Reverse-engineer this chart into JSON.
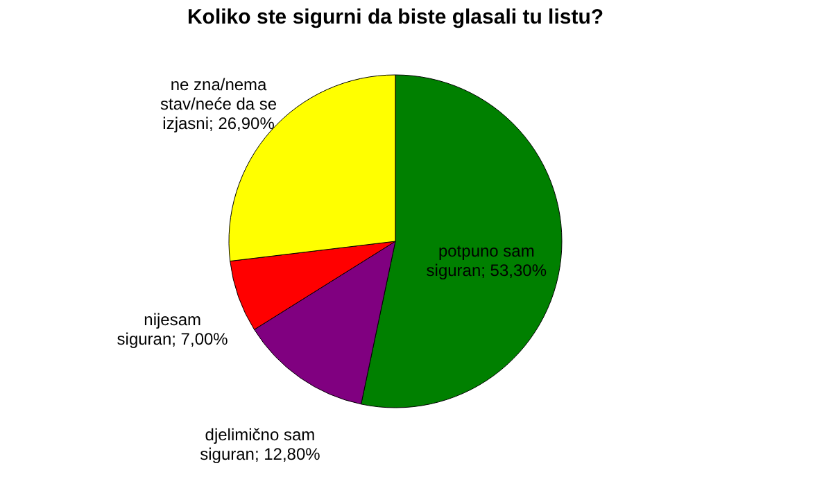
{
  "chart_data": {
    "type": "pie",
    "title": "Koliko ste sigurni da biste glasali tu listu?",
    "categories": [
      "potpuno sam siguran",
      "djelimično sam siguran",
      "nijesam siguran",
      "ne zna/nema stav/neće da se izjasni"
    ],
    "values": [
      53.3,
      12.8,
      7.0,
      26.9
    ],
    "value_labels": [
      "53,30%",
      "12,80%",
      "7,00%",
      "26,90%"
    ],
    "colors": [
      "#008000",
      "#800080",
      "#ff0000",
      "#ffff00"
    ],
    "legend": false
  }
}
